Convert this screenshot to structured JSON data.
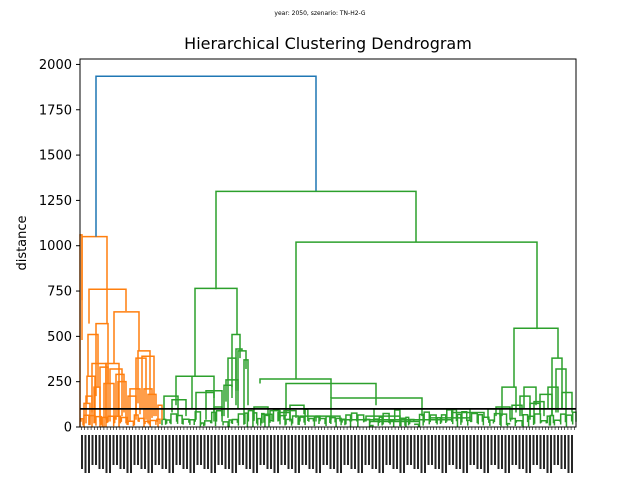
{
  "chart_data": {
    "type": "dendrogram",
    "suptitle": "year: 2050, szenario: TN-H2-G",
    "title": "Hierarchical Clustering Dendrogram",
    "xlabel": "",
    "ylabel": "distance",
    "ylim": [
      0,
      2030
    ],
    "yticks": [
      0,
      250,
      500,
      750,
      1000,
      1250,
      1500,
      1750,
      2000
    ],
    "cut_line": 100,
    "colors": {
      "orange": "#ff7f0e",
      "green": "#2ca02c",
      "blue": "#1f77b4",
      "cut": "#000000"
    },
    "links": [
      {
        "color": "blue",
        "left": 1050,
        "right": 1300,
        "height": 1935
      },
      {
        "color": "orange",
        "left": 640,
        "right": 690,
        "height": 1050
      },
      {
        "color": "orange",
        "left": 510,
        "right": 330,
        "height": 760
      },
      {
        "color": "orange",
        "left": 330,
        "right": 340,
        "height": 630
      },
      {
        "color": "green",
        "left": 760,
        "right": 1020,
        "height": 1300
      },
      {
        "color": "green",
        "left": 250,
        "right": 510,
        "height": 760
      },
      {
        "color": "green",
        "left": 255,
        "right": 540,
        "height": 1020
      },
      {
        "color": "green",
        "left": 240,
        "right": 120,
        "height": 540
      },
      {
        "color": "green",
        "left": 100,
        "right": 240,
        "height": 265
      },
      {
        "color": "green",
        "left": 200,
        "right": 140,
        "height": 240
      }
    ]
  }
}
